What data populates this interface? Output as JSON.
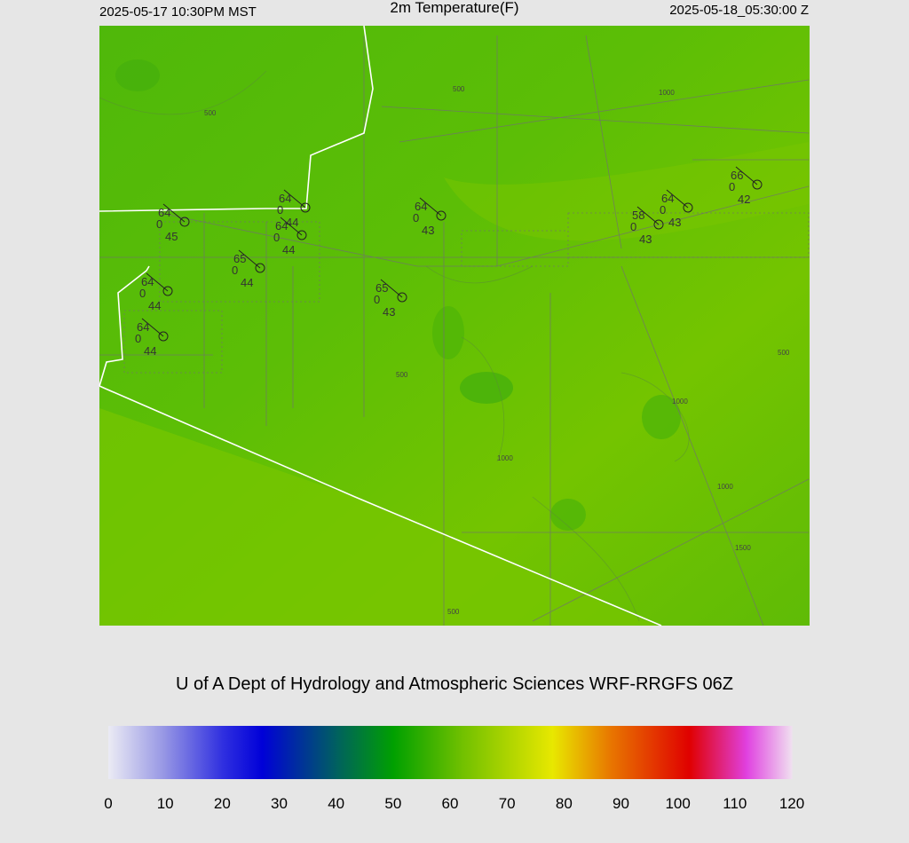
{
  "header": {
    "valid_local": "2025-05-17 10:30PM MST",
    "title": "2m Temperature(F)",
    "valid_utc": "2025-05-18_05:30:00 Z"
  },
  "stations": [
    {
      "temp": 64,
      "mid": 0,
      "dew": 45
    },
    {
      "temp": 64,
      "mid": 0,
      "dew": 44
    },
    {
      "temp": 64,
      "mid": 0,
      "dew": 44
    },
    {
      "temp": 65,
      "mid": 0,
      "dew": 44
    },
    {
      "temp": 64,
      "mid": 0,
      "dew": 44
    },
    {
      "temp": 64,
      "mid": 0,
      "dew": 44
    },
    {
      "temp": 65,
      "mid": 0,
      "dew": 43
    },
    {
      "temp": 64,
      "mid": 0,
      "dew": 43
    },
    {
      "temp": 64,
      "mid": 0,
      "dew": 43
    },
    {
      "temp": 58,
      "mid": 0,
      "dew": 43
    },
    {
      "temp": 66,
      "mid": 0,
      "dew": 42
    }
  ],
  "contour_labels": [
    500,
    500,
    1000,
    500,
    500,
    1000,
    1000,
    1000,
    1500,
    500
  ],
  "credit": "U of A Dept of Hydrology and Atmospheric Sciences WRF-RRGFS 06Z",
  "colorbar": {
    "lim": [
      0,
      120
    ],
    "ticks": [
      0,
      10,
      20,
      30,
      40,
      50,
      60,
      70,
      80,
      90,
      100,
      110,
      120
    ],
    "stops": [
      {
        "value": 0,
        "color": "#ebebf4"
      },
      {
        "value": 10,
        "color": "#9494e4"
      },
      {
        "value": 20,
        "color": "#3030e0"
      },
      {
        "value": 27,
        "color": "#0000d8"
      },
      {
        "value": 40,
        "color": "#006060"
      },
      {
        "value": 50,
        "color": "#00a000"
      },
      {
        "value": 62,
        "color": "#70c000"
      },
      {
        "value": 78,
        "color": "#e8e800"
      },
      {
        "value": 88,
        "color": "#e87800"
      },
      {
        "value": 102,
        "color": "#e00000"
      },
      {
        "value": 112,
        "color": "#e040e0"
      },
      {
        "value": 120,
        "color": "#f0e0f0"
      }
    ]
  }
}
